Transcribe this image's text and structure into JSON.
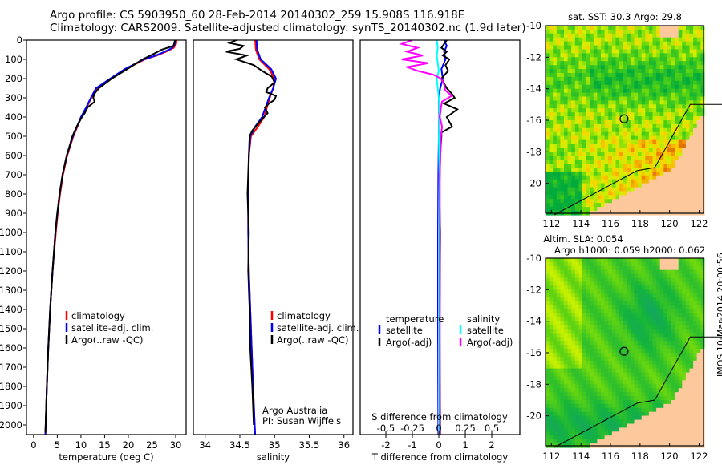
{
  "title_line1": "Argo profile: CS 5903950_60 28-Feb-2014 20140302_259 15.908S 116.918E",
  "title_line2": "Climatology: CARS2009. Satellite-adjusted climatology: synTS_20140302.nc (1.9d later)",
  "stamp": "IMOS 10-Mar-2014 20:00:56",
  "colors": {
    "climatology": "#ff0000",
    "satellite": "#0000ff",
    "argo": "#000000",
    "sal_sat": "#00ffff",
    "sal_argo": "#ff00ff",
    "land": "#fcc89c"
  },
  "chart_data": [
    {
      "type": "line",
      "xlabel": "temperature (deg C)",
      "xlim": [
        -1.5,
        32.2
      ],
      "ylim": [
        0,
        2050
      ],
      "xticks": [
        0,
        5,
        10,
        15,
        20,
        25,
        30
      ],
      "yticks": [
        0,
        100,
        200,
        300,
        400,
        500,
        600,
        700,
        800,
        900,
        1000,
        1100,
        1200,
        1300,
        1400,
        1500,
        1600,
        1700,
        1800,
        1900,
        2000
      ],
      "legend": [
        "climatology",
        "satellite-adj. clim.",
        "Argo(..raw -QC)"
      ],
      "series": [
        {
          "name": "climatology",
          "depth": [
            0,
            20,
            40,
            60,
            80,
            100,
            150,
            200,
            250,
            300,
            350,
            400,
            500,
            600,
            700,
            800,
            900,
            1000,
            1200,
            1400,
            1600,
            1800,
            2050
          ],
          "values": [
            30.2,
            30.1,
            29.6,
            28,
            26,
            23.5,
            19.5,
            16.3,
            13.3,
            12.2,
            11.2,
            10.1,
            8.4,
            7.1,
            6.2,
            5.6,
            5.1,
            4.7,
            4,
            3.5,
            3.1,
            2.8,
            2.5
          ]
        },
        {
          "name": "satellite",
          "depth": [
            0,
            20,
            40,
            60,
            80,
            100,
            150,
            200,
            250,
            300,
            350,
            400,
            500,
            600,
            700,
            800,
            900,
            1000,
            1200,
            1400,
            1600,
            1800,
            2050
          ],
          "values": [
            29.9,
            29.8,
            29.3,
            27.7,
            25.8,
            23.3,
            19.3,
            16.2,
            13.2,
            12.1,
            11.1,
            10,
            8.3,
            7,
            6.1,
            5.5,
            5,
            4.6,
            4,
            3.5,
            3.1,
            2.8,
            2.5
          ]
        },
        {
          "name": "argo",
          "depth": [
            0,
            10,
            30,
            50,
            70,
            100,
            150,
            200,
            250,
            280,
            300,
            320,
            350,
            380,
            400,
            450,
            500,
            600,
            700,
            800,
            900,
            1000,
            1200,
            1400,
            1600,
            1800,
            2040
          ],
          "values": [
            29.8,
            29.8,
            29.5,
            27,
            25.5,
            23,
            19.8,
            16.5,
            13.8,
            12.8,
            12.6,
            12.9,
            11.4,
            10.8,
            10.2,
            9.1,
            8.2,
            7,
            6.1,
            5.5,
            5,
            4.6,
            4,
            3.5,
            3.1,
            2.8,
            2.5
          ]
        }
      ]
    },
    {
      "type": "line",
      "xlabel": "salinity",
      "xlim": [
        33.83,
        36.13
      ],
      "ylim": [
        0,
        2050
      ],
      "xticks": [
        34,
        34.5,
        35,
        35.5,
        36
      ],
      "legend": [
        "climatology",
        "satellite-adj. clim.",
        "Argo(..raw -QC)"
      ],
      "annotation": [
        "Argo Australia",
        "PI: Susan Wijffels"
      ],
      "series": [
        {
          "name": "climatology",
          "depth": [
            0,
            50,
            100,
            150,
            200,
            250,
            300,
            350,
            400,
            450,
            500,
            600,
            800,
            1000,
            1200,
            1500,
            1800,
            2050
          ],
          "values": [
            34.72,
            34.73,
            34.78,
            34.92,
            35.0,
            34.98,
            34.93,
            34.89,
            34.85,
            34.76,
            34.66,
            34.63,
            34.62,
            34.62,
            34.63,
            34.66,
            34.69,
            34.72
          ]
        },
        {
          "name": "satellite",
          "depth": [
            0,
            50,
            100,
            150,
            200,
            250,
            300,
            350,
            400,
            450,
            500,
            600,
            800,
            1000,
            1200,
            1500,
            1800,
            2050
          ],
          "values": [
            34.74,
            34.75,
            34.8,
            34.95,
            35.02,
            34.98,
            34.92,
            34.87,
            34.82,
            34.72,
            34.65,
            34.63,
            34.62,
            34.62,
            34.63,
            34.66,
            34.69,
            34.72
          ]
        },
        {
          "name": "argo",
          "depth": [
            0,
            15,
            30,
            45,
            60,
            80,
            100,
            130,
            160,
            190,
            220,
            250,
            270,
            290,
            310,
            330,
            350,
            380,
            410,
            440,
            470,
            500,
            600,
            800,
            1000,
            1200,
            1400,
            1600,
            1800,
            2000
          ],
          "values": [
            34.45,
            34.35,
            34.55,
            34.5,
            34.3,
            34.6,
            34.45,
            34.7,
            34.82,
            34.96,
            35.0,
            34.9,
            34.88,
            35.02,
            35.0,
            34.92,
            34.86,
            34.9,
            34.82,
            34.75,
            34.68,
            34.64,
            34.63,
            34.61,
            34.63,
            34.62,
            34.64,
            34.65,
            34.68,
            34.7
          ]
        }
      ]
    },
    {
      "type": "line",
      "xlabel": "T difference from climatology",
      "x2label": "S difference from climatology",
      "xlim": [
        -2.97,
        3.06
      ],
      "ylim": [
        0,
        2050
      ],
      "xticks": [
        -2,
        -1,
        0,
        1,
        2
      ],
      "x2ticks": [
        -0.5,
        -0.25,
        0,
        0.25,
        0.5
      ],
      "x2ticklabels": [
        "-0.5",
        "-0.25",
        "0",
        "0.25",
        "0.5"
      ],
      "legend_headers": [
        "temperature",
        "salinity"
      ],
      "legend": [
        "satellite",
        "Argo(-adj)",
        "satellite",
        "Argo(-adj)"
      ],
      "series": [
        {
          "name": "T satellite",
          "units": "T",
          "depth": [
            0,
            30,
            60,
            100,
            150,
            200,
            250,
            300,
            400,
            500,
            700,
            1000,
            1500,
            2050
          ],
          "values": [
            0.2,
            0.3,
            0.2,
            0.25,
            0.1,
            0.15,
            0.05,
            0,
            0.02,
            0,
            -0.02,
            -0.03,
            -0.03,
            -0.02
          ]
        },
        {
          "name": "T argo",
          "units": "T",
          "depth": [
            0,
            20,
            40,
            60,
            80,
            100,
            130,
            160,
            200,
            250,
            280,
            300,
            330,
            360,
            400,
            450,
            480,
            500,
            600,
            800,
            1000,
            1500,
            2050
          ],
          "values": [
            0.3,
            0.2,
            0.1,
            0.3,
            0.15,
            0.4,
            0.25,
            0.35,
            0.1,
            0.3,
            0.5,
            0.6,
            0.2,
            0.7,
            0.3,
            0.5,
            0.1,
            0.1,
            0.05,
            0.02,
            0.05,
            0.03,
            0.05
          ]
        },
        {
          "name": "S satellite",
          "units": "S",
          "depth": [
            0,
            40,
            80,
            120,
            160,
            200,
            300,
            400,
            500,
            700,
            1000,
            2050
          ],
          "values": [
            -0.02,
            -0.01,
            -0.02,
            -0.01,
            0,
            -0.02,
            0,
            0.01,
            0,
            0.005,
            0,
            0
          ]
        },
        {
          "name": "S argo",
          "units": "S",
          "depth": [
            0,
            20,
            40,
            60,
            80,
            100,
            120,
            140,
            160,
            180,
            200,
            230,
            260,
            290,
            320,
            350,
            400,
            450,
            500,
            700,
            1000,
            2050
          ],
          "values": [
            -0.25,
            -0.35,
            -0.2,
            -0.3,
            -0.15,
            -0.35,
            -0.1,
            -0.3,
            -0.2,
            -0.05,
            0.02,
            0.05,
            0.06,
            0.12,
            0.03,
            0.02,
            0.01,
            0.03,
            0.02,
            0.01,
            0.01,
            0.01
          ]
        }
      ]
    }
  ],
  "maps": [
    {
      "title": "sat. SST: 30.3 Argo: 29.8",
      "lon": [
        111.6,
        122.3
      ],
      "lat": [
        -21.9,
        -10
      ],
      "xticks": [
        112,
        114,
        116,
        118,
        120,
        122
      ],
      "yticks": [
        -10,
        -12,
        -14,
        -16,
        -18,
        -20
      ],
      "marker": [
        116.918,
        -15.908
      ],
      "field": "sst"
    },
    {
      "title": "Altim. SLA: 0.054",
      "title2": "Argo h1000: 0.059 h2000: 0.062",
      "lon": [
        111.6,
        122.3
      ],
      "lat": [
        -21.9,
        -10
      ],
      "xticks": [
        112,
        114,
        116,
        118,
        120,
        122
      ],
      "yticks": [
        -10,
        -12,
        -14,
        -16,
        -18,
        -20
      ],
      "marker": [
        116.918,
        -15.908
      ],
      "field": "sla"
    }
  ]
}
